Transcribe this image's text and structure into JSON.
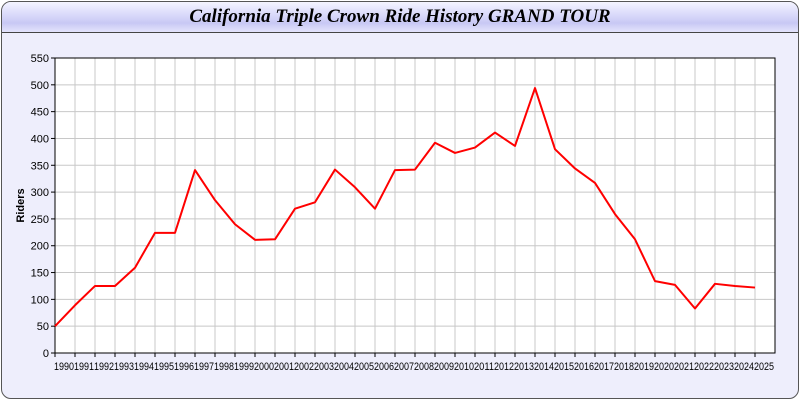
{
  "window": {
    "title": "California Triple Crown Ride History GRAND TOUR"
  },
  "colors": {
    "line": "#ff0000",
    "background": "#eeeefc",
    "grid": "#c8c8c8"
  },
  "chart_data": {
    "type": "line",
    "title": "California Triple Crown Ride History GRAND TOUR",
    "xlabel": "",
    "ylabel": "Riders",
    "ylim": [
      0,
      550
    ],
    "yticks": [
      0,
      50,
      100,
      150,
      200,
      250,
      300,
      350,
      400,
      450,
      500,
      550
    ],
    "grid": true,
    "x": [
      1990,
      1991,
      1992,
      1993,
      1994,
      1995,
      1996,
      1997,
      1998,
      1999,
      2000,
      2001,
      2002,
      2003,
      2004,
      2005,
      2006,
      2007,
      2008,
      2009,
      2010,
      2011,
      2012,
      2013,
      2014,
      2015,
      2016,
      2017,
      2018,
      2019,
      2020,
      2021,
      2022,
      2023,
      2024,
      2025
    ],
    "series": [
      {
        "values": [
          50,
          89,
          125,
          125,
          159,
          224,
          224,
          341,
          285,
          240,
          211,
          212,
          269,
          281,
          342,
          309,
          269,
          341,
          342,
          392,
          373,
          383,
          411,
          386,
          494,
          380,
          344,
          317,
          259,
          212,
          134,
          127,
          83,
          129,
          125,
          122
        ]
      }
    ]
  }
}
